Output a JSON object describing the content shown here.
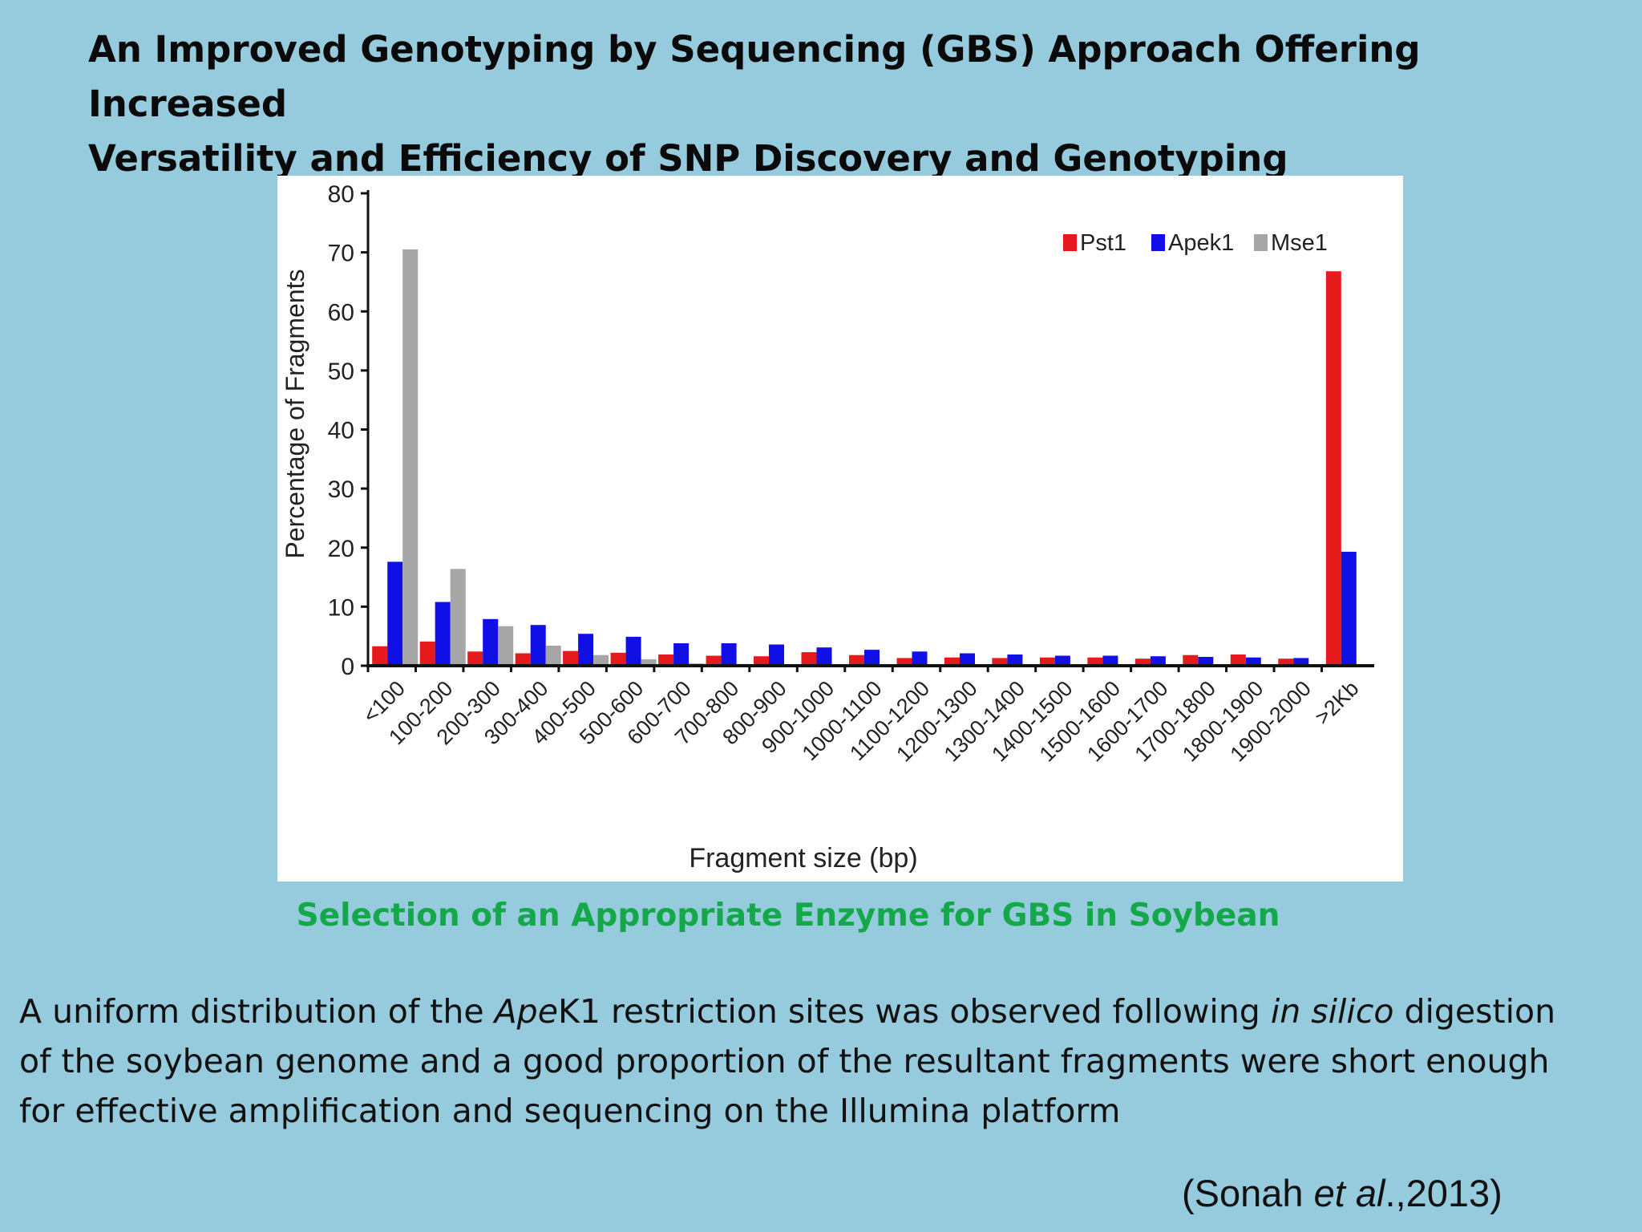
{
  "slide": {
    "title_lines": [
      "An Improved Genotyping by Sequencing (GBS) Approach Offering Increased",
      "Versatility and Efficiency of SNP Discovery and Genotyping"
    ],
    "caption": "Selection of an Appropriate Enzyme for GBS in Soybean",
    "body_lines": [
      [
        "A uniform distribution of the ",
        {
          "i": "Ape"
        },
        "K1 restriction sites was observed following ",
        {
          "i": "in silico"
        },
        " digestion"
      ],
      [
        "of the soybean genome and a good proportion of the resultant fragments were short enough"
      ],
      [
        "for effective amplification and sequencing on the Illumina platform"
      ]
    ],
    "citation": [
      "(Sonah ",
      {
        "i": "et al"
      },
      ".,2013)"
    ]
  },
  "colors": {
    "background": "#96cadd",
    "caption": "#15a84b",
    "Pst1": "#e41a1c",
    "Apek1": "#1010e6",
    "Mse1": "#a6a6a6"
  },
  "chart_data": {
    "type": "bar",
    "title": "",
    "xlabel": "Fragment size (bp)",
    "ylabel": "Percentage of Fragments",
    "ylim": [
      0,
      80
    ],
    "yticks": [
      0,
      10,
      20,
      30,
      40,
      50,
      60,
      70,
      80
    ],
    "grid": false,
    "legend_position": "top-right",
    "categories": [
      "<100",
      "100-200",
      "200-300",
      "300-400",
      "400-500",
      "500-600",
      "600-700",
      "700-800",
      "800-900",
      "900-1000",
      "1000-1100",
      "1100-1200",
      "1200-1300",
      "1300-1400",
      "1400-1500",
      "1500-1600",
      "1600-1700",
      "1700-1800",
      "1800-1900",
      "1900-2000",
      ">2Kb"
    ],
    "series": [
      {
        "name": "Pst1",
        "color": "#e41a1c",
        "values": [
          3.3,
          4.1,
          2.4,
          2.1,
          2.5,
          2.2,
          1.9,
          1.7,
          1.6,
          2.3,
          1.8,
          1.3,
          1.4,
          1.3,
          1.4,
          1.4,
          1.2,
          1.8,
          1.9,
          1.2,
          66.8
        ]
      },
      {
        "name": "Apek1",
        "color": "#1010e6",
        "values": [
          17.6,
          10.8,
          7.9,
          6.9,
          5.4,
          4.9,
          3.8,
          3.8,
          3.6,
          3.1,
          2.7,
          2.4,
          2.1,
          1.9,
          1.7,
          1.7,
          1.6,
          1.5,
          1.4,
          1.3,
          19.3
        ]
      },
      {
        "name": "Mse1",
        "color": "#a6a6a6",
        "values": [
          70.5,
          16.4,
          6.7,
          3.4,
          1.8,
          1.1,
          0.4,
          0.3,
          0.2,
          0.2,
          0.2,
          0.1,
          0.1,
          0.1,
          0.1,
          0.1,
          0.1,
          0.1,
          0.1,
          0.1,
          0.1
        ]
      }
    ]
  }
}
